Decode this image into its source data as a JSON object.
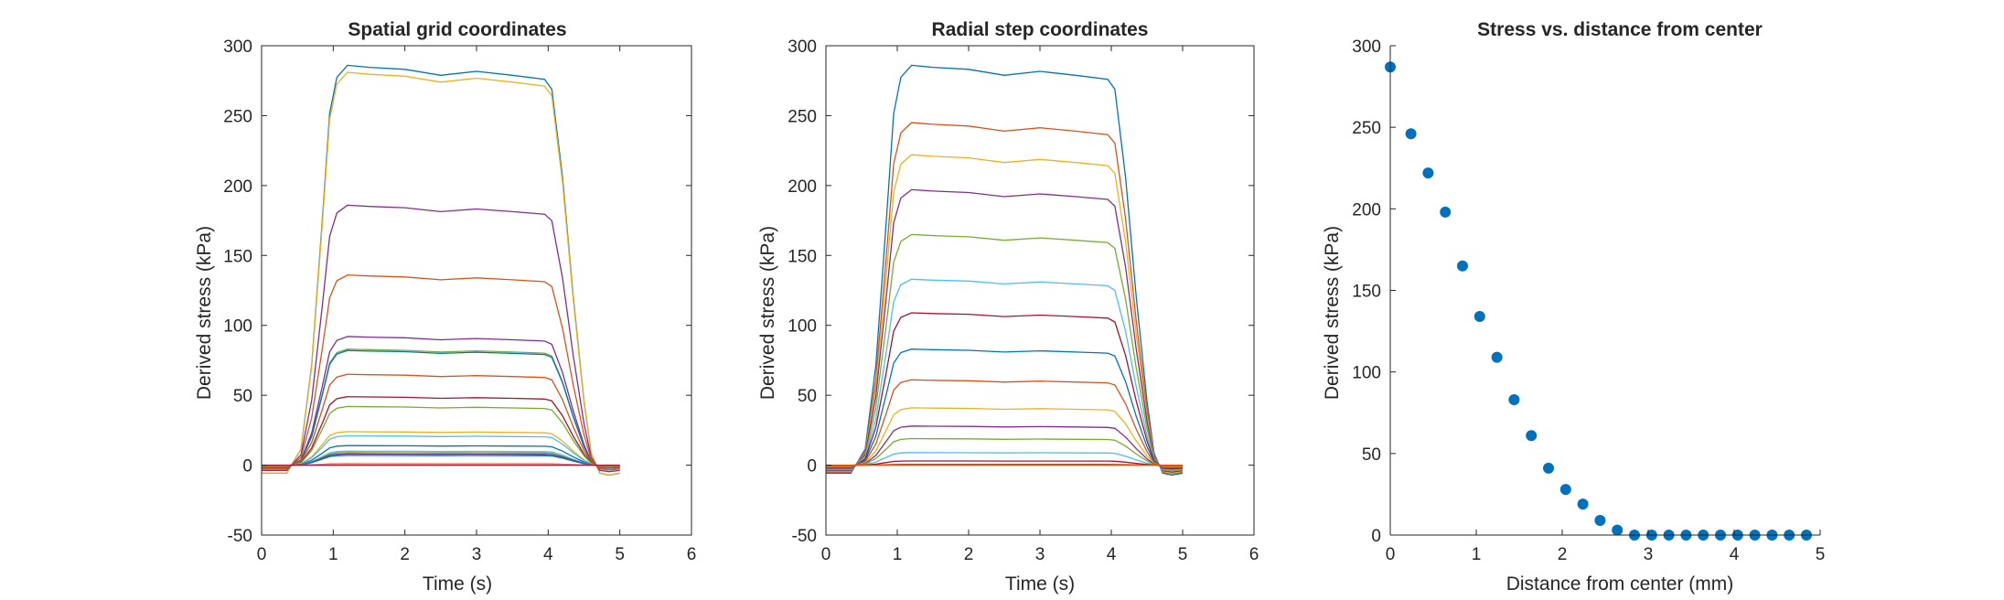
{
  "chart_data": [
    {
      "type": "line",
      "title": "Spatial grid coordinates",
      "xlabel": "Time (s)",
      "ylabel": "Derived stress (kPa)",
      "xlim": [
        0,
        6
      ],
      "ylim": [
        -50,
        300
      ],
      "xticks": [
        "0",
        "1",
        "2",
        "3",
        "4",
        "5",
        "6"
      ],
      "yticks": [
        "-50",
        "0",
        "50",
        "100",
        "150",
        "200",
        "250",
        "300"
      ],
      "grid": false,
      "profile": {
        "x": [
          0,
          0.35,
          0.55,
          0.7,
          0.85,
          0.95,
          1.05,
          1.2,
          1.5,
          2.0,
          2.5,
          3.0,
          3.5,
          3.95,
          4.05,
          4.2,
          4.35,
          4.5,
          4.6,
          4.72,
          4.85,
          5.0
        ],
        "y": [
          -0.02,
          -0.02,
          0.04,
          0.25,
          0.62,
          0.88,
          0.97,
          1.0,
          0.995,
          0.99,
          0.975,
          0.985,
          0.975,
          0.965,
          0.94,
          0.72,
          0.42,
          0.16,
          0.03,
          -0.02,
          -0.025,
          -0.02
        ]
      },
      "series": [
        {
          "peak": 286,
          "color": "#0072BD"
        },
        {
          "peak": 281,
          "color": "#EDB120"
        },
        {
          "peak": 186,
          "color": "#7E2F8E"
        },
        {
          "peak": 136,
          "color": "#D95319"
        },
        {
          "peak": 92,
          "color": "#7E2F8E"
        },
        {
          "peak": 83,
          "color": "#77AC30"
        },
        {
          "peak": 82,
          "color": "#0072BD"
        },
        {
          "peak": 65,
          "color": "#D95319"
        },
        {
          "peak": 49,
          "color": "#A2142F"
        },
        {
          "peak": 42,
          "color": "#77AC30"
        },
        {
          "peak": 24,
          "color": "#EDB120"
        },
        {
          "peak": 21,
          "color": "#4DBEEE"
        },
        {
          "peak": 14,
          "color": "#0072BD"
        },
        {
          "peak": 10,
          "color": "#4DBEEE"
        },
        {
          "peak": 9,
          "color": "#77AC30"
        },
        {
          "peak": 8,
          "color": "#7E2F8E"
        },
        {
          "peak": 7,
          "color": "#0072BD"
        },
        {
          "peak": 1,
          "color": "#D95319"
        },
        {
          "peak": 0.5,
          "color": "#EDB120"
        },
        {
          "peak": 0,
          "color": "#A2142F"
        }
      ]
    },
    {
      "type": "line",
      "title": "Radial step coordinates",
      "xlabel": "Time (s)",
      "ylabel": "Derived stress (kPa)",
      "xlim": [
        0,
        6
      ],
      "ylim": [
        -50,
        300
      ],
      "xticks": [
        "0",
        "1",
        "2",
        "3",
        "4",
        "5",
        "6"
      ],
      "yticks": [
        "-50",
        "0",
        "50",
        "100",
        "150",
        "200",
        "250",
        "300"
      ],
      "grid": false,
      "profile": {
        "x": [
          0,
          0.35,
          0.55,
          0.7,
          0.85,
          0.95,
          1.05,
          1.2,
          1.5,
          2.0,
          2.5,
          3.0,
          3.5,
          3.95,
          4.05,
          4.2,
          4.35,
          4.5,
          4.6,
          4.72,
          4.85,
          5.0
        ],
        "y": [
          -0.02,
          -0.02,
          0.04,
          0.25,
          0.62,
          0.88,
          0.97,
          1.0,
          0.995,
          0.99,
          0.975,
          0.985,
          0.975,
          0.965,
          0.94,
          0.72,
          0.42,
          0.16,
          0.03,
          -0.02,
          -0.025,
          -0.02
        ]
      },
      "series": [
        {
          "peak": 286,
          "color": "#0072BD"
        },
        {
          "peak": 245,
          "color": "#D95319"
        },
        {
          "peak": 222,
          "color": "#EDB120"
        },
        {
          "peak": 197,
          "color": "#7E2F8E"
        },
        {
          "peak": 165,
          "color": "#77AC30"
        },
        {
          "peak": 133,
          "color": "#4DBEEE"
        },
        {
          "peak": 109,
          "color": "#A2142F"
        },
        {
          "peak": 83,
          "color": "#0072BD"
        },
        {
          "peak": 61,
          "color": "#D95319"
        },
        {
          "peak": 41,
          "color": "#EDB120"
        },
        {
          "peak": 28,
          "color": "#7E2F8E"
        },
        {
          "peak": 19,
          "color": "#77AC30"
        },
        {
          "peak": 9,
          "color": "#4DBEEE"
        },
        {
          "peak": 3,
          "color": "#A2142F"
        },
        {
          "peak": 0.5,
          "color": "#0072BD"
        },
        {
          "peak": 0,
          "color": "#D95319"
        }
      ]
    },
    {
      "type": "scatter",
      "title": "Stress vs. distance from center",
      "xlabel": "Distance from center (mm)",
      "ylabel": "Derived stress (kPa)",
      "xlim": [
        0,
        5
      ],
      "ylim": [
        0,
        300
      ],
      "xticks": [
        "0",
        "1",
        "2",
        "3",
        "4",
        "5"
      ],
      "yticks": [
        "0",
        "50",
        "100",
        "150",
        "200",
        "250",
        "300"
      ],
      "grid": false,
      "color": "#0072BD",
      "x": [
        0,
        0.24,
        0.44,
        0.64,
        0.84,
        1.04,
        1.24,
        1.44,
        1.64,
        1.84,
        2.04,
        2.24,
        2.44,
        2.64,
        2.84,
        3.04,
        3.24,
        3.44,
        3.64,
        3.84,
        4.04,
        4.24,
        4.44,
        4.64,
        4.84
      ],
      "y": [
        287,
        246,
        222,
        198,
        165,
        134,
        109,
        83,
        61,
        41,
        28,
        19,
        9,
        3,
        0,
        0,
        0,
        0,
        0,
        0,
        0,
        0,
        0,
        0,
        0
      ]
    }
  ]
}
